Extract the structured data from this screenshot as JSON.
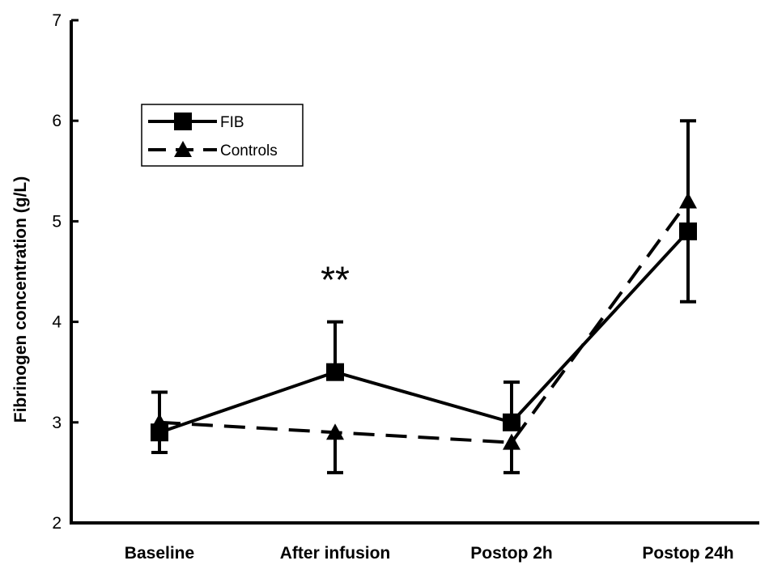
{
  "chart_data": {
    "type": "line",
    "categories": [
      "Baseline",
      "After infusion",
      "Postop 2h",
      "Postop 24h"
    ],
    "ylabel": "Fibrinogen concentration (g/L)",
    "xlabel": "",
    "title": "",
    "ylim": [
      2,
      7
    ],
    "yticks": [
      2,
      3,
      4,
      5,
      6,
      7
    ],
    "grid": false,
    "legend_position": "top-left",
    "series": [
      {
        "name": "FIB",
        "marker": "square",
        "line_style": "solid",
        "color": "#000000",
        "values": [
          2.9,
          3.5,
          3.0,
          4.9
        ],
        "error_upper": [
          0.4,
          0.5,
          0.4,
          1.1
        ],
        "error_lower": [
          0.2,
          0.0,
          0.0,
          0.7
        ]
      },
      {
        "name": "Controls",
        "marker": "triangle",
        "line_style": "dashed",
        "color": "#000000",
        "values": [
          3.0,
          2.9,
          2.8,
          5.2
        ],
        "error_upper": [
          0.0,
          0.0,
          0.0,
          0.0
        ],
        "error_lower": [
          0.3,
          0.4,
          0.3,
          0.0
        ]
      }
    ],
    "annotations": [
      {
        "text": "**",
        "category": "After infusion",
        "y": 4.45
      }
    ]
  }
}
